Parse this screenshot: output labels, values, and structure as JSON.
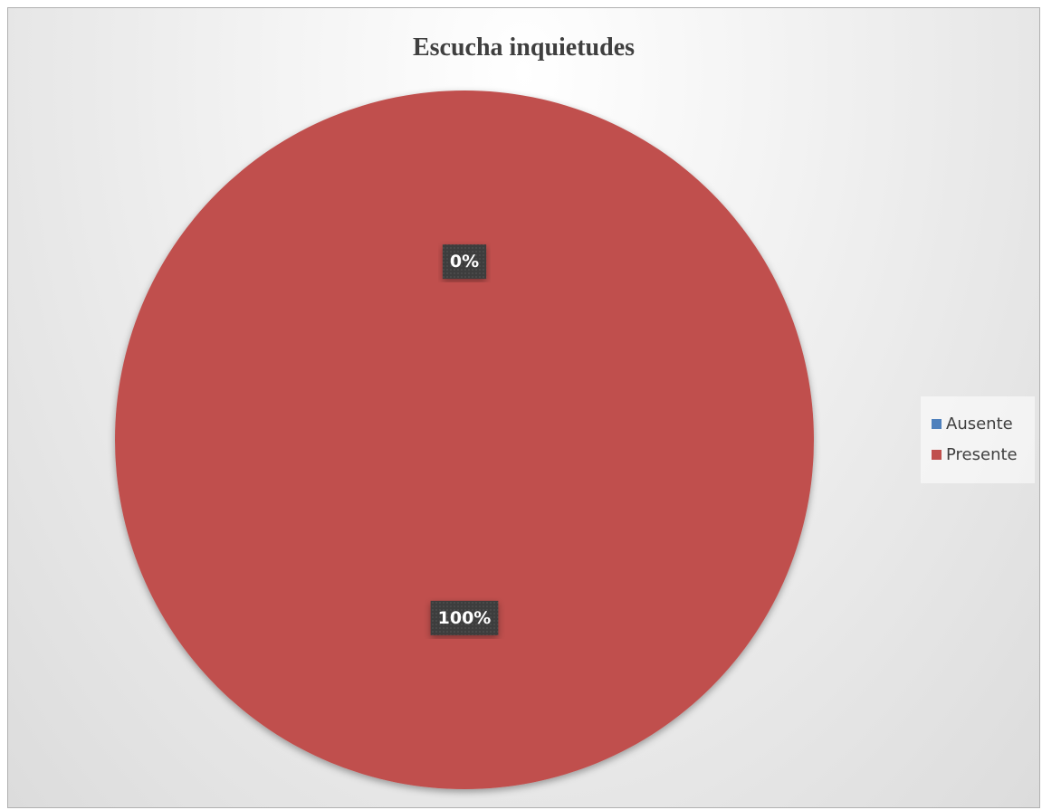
{
  "chart_data": {
    "type": "pie",
    "title": "Escucha inquietudes",
    "categories": [
      "Ausente",
      "Presente"
    ],
    "values": [
      0,
      100
    ],
    "data_labels": [
      "0%",
      "100%"
    ],
    "colors": [
      "#4f81bd",
      "#c0504d"
    ],
    "legend_position": "right"
  }
}
